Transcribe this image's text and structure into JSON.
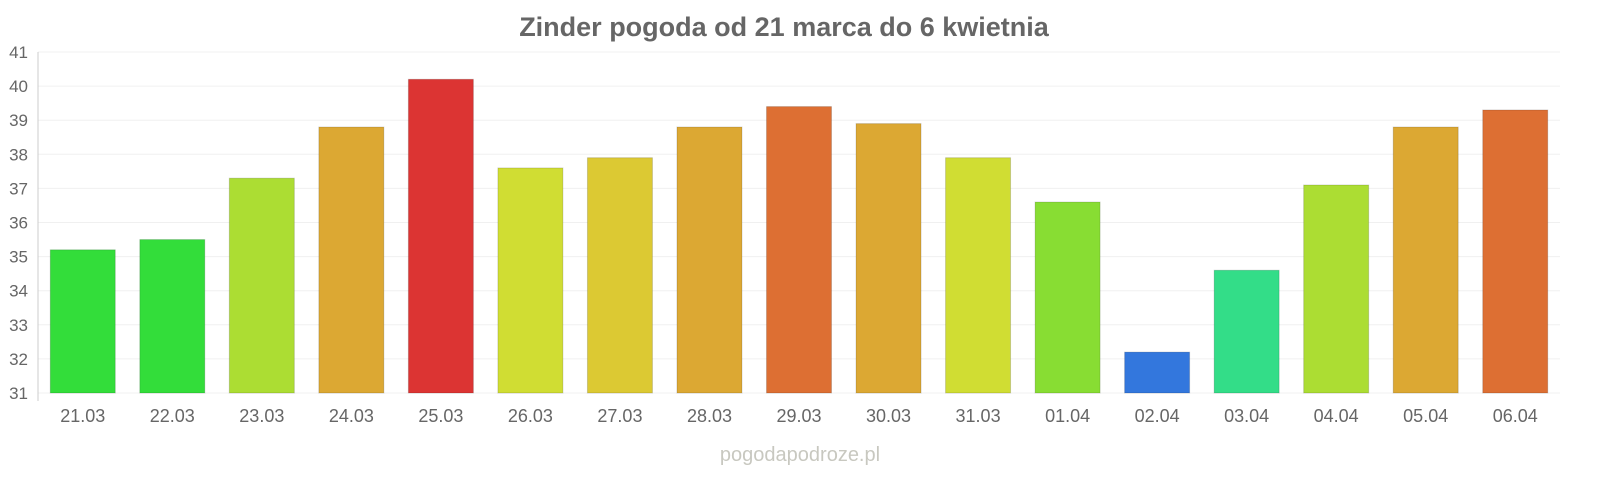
{
  "chart_data": {
    "type": "bar",
    "title": "Zinder pogoda od 21 marca do 6 kwietnia",
    "xlabel": "",
    "ylabel": "",
    "ylim": [
      31,
      41
    ],
    "yticks": [
      31,
      32,
      33,
      34,
      35,
      36,
      37,
      38,
      39,
      40,
      41
    ],
    "grid": true,
    "categories": [
      "21.03",
      "22.03",
      "23.03",
      "24.03",
      "25.03",
      "26.03",
      "27.03",
      "28.03",
      "29.03",
      "30.03",
      "31.03",
      "01.04",
      "02.04",
      "03.04",
      "04.04",
      "05.04",
      "06.04"
    ],
    "values": [
      35.2,
      35.5,
      37.3,
      38.8,
      40.2,
      37.6,
      37.9,
      38.8,
      39.4,
      38.9,
      37.9,
      36.6,
      32.2,
      34.6,
      37.1,
      38.8,
      39.3
    ],
    "colors": [
      "#33dd3a",
      "#33dd3a",
      "#acdd33",
      "#dca833",
      "#dc3433",
      "#d0dd33",
      "#dcc933",
      "#dca833",
      "#dd6f33",
      "#dca833",
      "#d0dd33",
      "#88dd33",
      "#3377dd",
      "#33dd88",
      "#acdd33",
      "#dca833",
      "#dd6f33"
    ]
  },
  "watermark": "pogodapodroze.pl"
}
